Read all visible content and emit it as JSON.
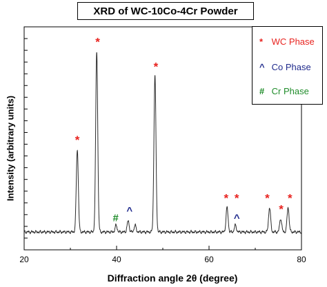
{
  "chart_data": {
    "type": "line",
    "title": "XRD of WC-10Co-4Cr Powder",
    "xlabel": "Diffraction angle 2θ (degree)",
    "ylabel": "Intensity (arbitrary units)",
    "xlim": [
      20,
      80
    ],
    "ylim": [
      0,
      100
    ],
    "x_ticks": [
      "20",
      "40",
      "60",
      "80"
    ],
    "y_tick_labels_shown": false,
    "baseline": 8,
    "peaks": [
      {
        "x": 31.5,
        "y": 45,
        "phase": "WC"
      },
      {
        "x": 35.7,
        "y": 89,
        "phase": "WC"
      },
      {
        "x": 39.9,
        "y": 11,
        "phase": "Cr"
      },
      {
        "x": 42.5,
        "y": 13,
        "phase": "Co"
      },
      {
        "x": 44.0,
        "y": 11,
        "phase": null
      },
      {
        "x": 48.3,
        "y": 78,
        "phase": "WC"
      },
      {
        "x": 63.9,
        "y": 19,
        "phase": "WC"
      },
      {
        "x": 65.7,
        "y": 11,
        "phase": "Co"
      },
      {
        "x": 73.1,
        "y": 19,
        "phase": "WC"
      },
      {
        "x": 75.5,
        "y": 14,
        "phase": "WC"
      },
      {
        "x": 77.1,
        "y": 19,
        "phase": "WC"
      }
    ],
    "annotations": [
      {
        "text": "*",
        "x": 31.5,
        "phase": "WC"
      },
      {
        "text": "*",
        "x": 35.9,
        "phase": "WC"
      },
      {
        "text": "#",
        "x": 39.8,
        "phase": "Cr"
      },
      {
        "text": "^",
        "x": 42.8,
        "phase": "Co"
      },
      {
        "text": "*",
        "x": 48.5,
        "phase": "WC"
      },
      {
        "text": "*",
        "x": 63.7,
        "phase": "WC"
      },
      {
        "text": "*",
        "x": 66.0,
        "phase": "WC"
      },
      {
        "text": "^",
        "x": 66.0,
        "phase": "Co"
      },
      {
        "text": "*",
        "x": 72.6,
        "phase": "WC"
      },
      {
        "text": "*",
        "x": 75.6,
        "phase": "WC"
      },
      {
        "text": "*",
        "x": 77.5,
        "phase": "WC"
      }
    ],
    "legend": {
      "placement": "top-right",
      "entries": [
        {
          "marker": "*",
          "label": "WC Phase",
          "color": "#e8231f"
        },
        {
          "marker": "^",
          "label": "Co Phase",
          "color": "#1f2a8c"
        },
        {
          "marker": "#",
          "label": "Cr Phase",
          "color": "#1f8c2a"
        }
      ]
    },
    "colors": {
      "line": "#2a2a2a",
      "WC": "#e8231f",
      "Co": "#1f2a8c",
      "Cr": "#1f8c2a"
    }
  }
}
